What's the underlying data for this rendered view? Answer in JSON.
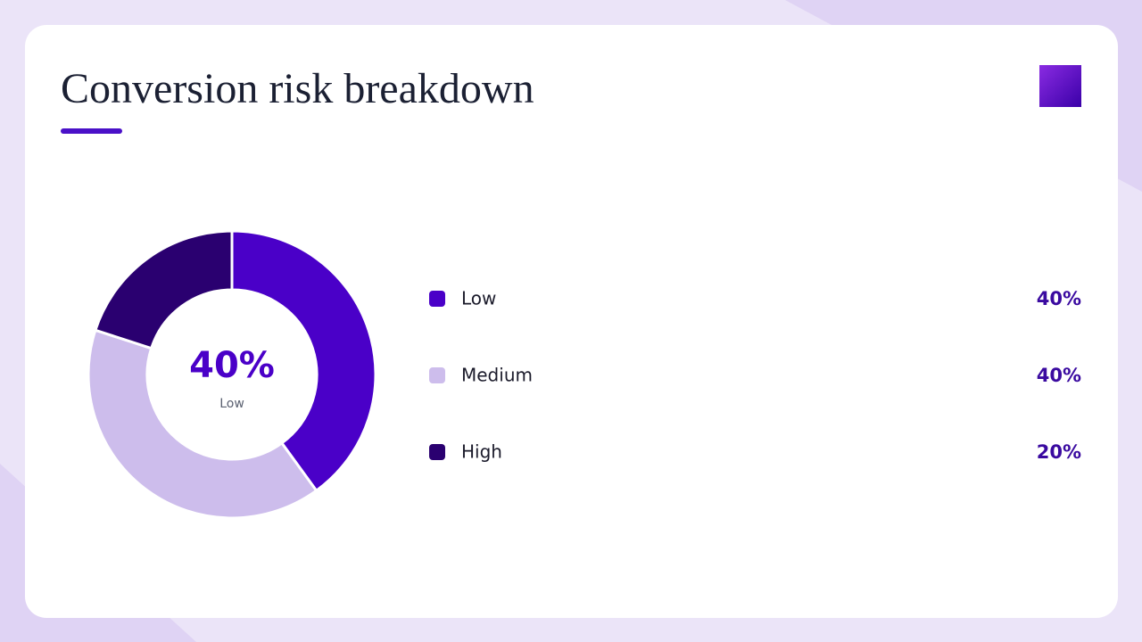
{
  "chart_data": {
    "type": "donut",
    "title": "Conversion risk breakdown",
    "categories": [
      "Low",
      "Medium",
      "High"
    ],
    "values": [
      40,
      40,
      20
    ],
    "value_labels": [
      "40%",
      "40%",
      "20%"
    ],
    "colors": [
      "#4a00c8",
      "#cdbdec",
      "#2a0070"
    ]
  }
}
